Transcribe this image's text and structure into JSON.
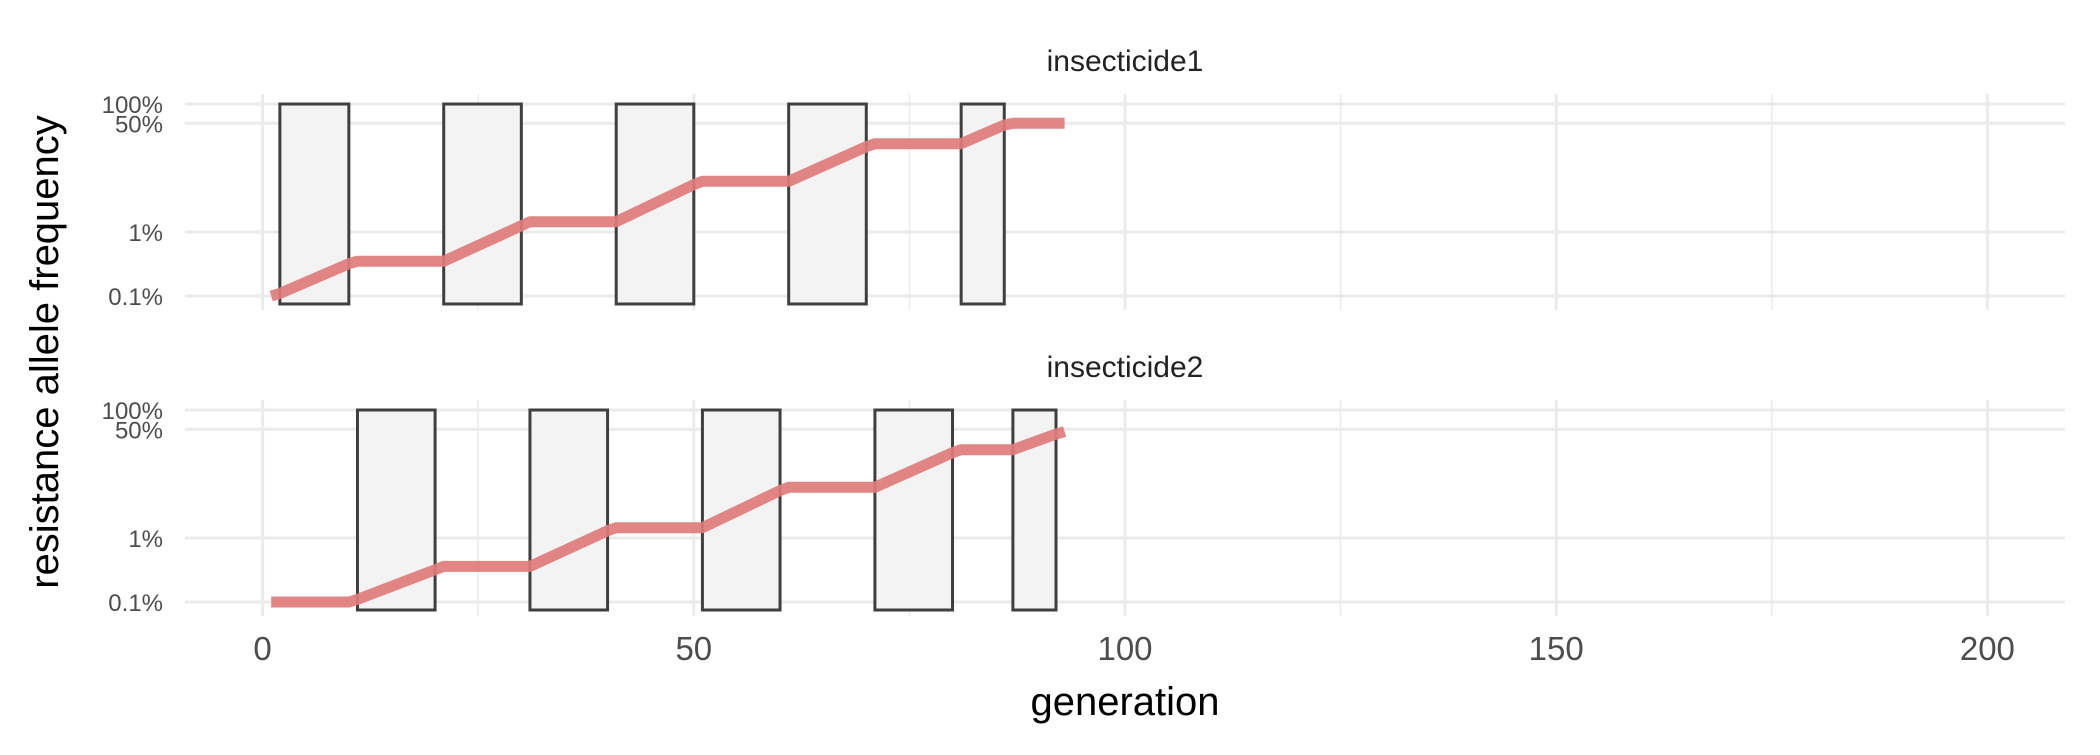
{
  "chart_data": {
    "type": "line",
    "xlabel": "generation",
    "ylabel": "resistance allele frequency",
    "xlim": [
      -9,
      209
    ],
    "x_ticks": [
      0,
      50,
      100,
      150,
      200
    ],
    "x_tick_labels": [
      "0",
      "50",
      "100",
      "150",
      "200"
    ],
    "y_scale": "log",
    "y_ticks": [
      0.001,
      0.01,
      0.5,
      1
    ],
    "y_tick_labels": [
      "0.1%",
      "1%",
      "50%",
      "100%"
    ],
    "grid": true,
    "colors": {
      "line": "#e07b7b",
      "box_fill": "#f3f3f3",
      "box_stroke": "#3f3f3f",
      "grid": "#ebebeb",
      "text": "#222222",
      "tick_text": "#4d4d4d"
    },
    "panels": [
      {
        "title": "insecticide1",
        "spray_periods": [
          [
            2,
            10
          ],
          [
            21,
            30
          ],
          [
            41,
            50
          ],
          [
            61,
            70
          ],
          [
            81,
            86
          ]
        ],
        "series": {
          "x": [
            1,
            2,
            10,
            11,
            21,
            30,
            31,
            41,
            50,
            51,
            61,
            70,
            71,
            81,
            86,
            87,
            93
          ],
          "y": [
            0.001,
            0.0011,
            0.0032,
            0.0035,
            0.0035,
            0.0125,
            0.0145,
            0.0145,
            0.055,
            0.062,
            0.062,
            0.215,
            0.24,
            0.24,
            0.47,
            0.5,
            0.5
          ]
        }
      },
      {
        "title": "insecticide2",
        "spray_periods": [
          [
            11,
            20
          ],
          [
            31,
            40
          ],
          [
            51,
            60
          ],
          [
            71,
            80
          ],
          [
            87,
            92
          ]
        ],
        "series": {
          "x": [
            1,
            10,
            11,
            20,
            21,
            31,
            40,
            41,
            51,
            60,
            61,
            71,
            80,
            81,
            87,
            92,
            93
          ],
          "y": [
            0.001,
            0.001,
            0.0011,
            0.0032,
            0.0036,
            0.0036,
            0.013,
            0.0145,
            0.0145,
            0.055,
            0.062,
            0.062,
            0.215,
            0.24,
            0.24,
            0.42,
            0.46
          ]
        }
      }
    ]
  }
}
